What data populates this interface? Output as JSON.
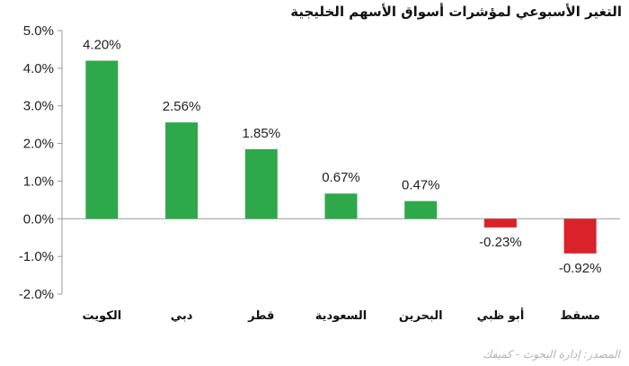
{
  "title": "التغير الأسبوعي لمؤشرات أسواق الأسهم الخليجية",
  "source": "المصدر: إدارة البحوث - كميفك",
  "chart_data": {
    "type": "bar",
    "categories": [
      "الكويت",
      "دبي",
      "قطر",
      "السعودية",
      "البحرين",
      "أبو ظبي",
      "مسقط"
    ],
    "values": [
      4.2,
      2.56,
      1.85,
      0.67,
      0.47,
      -0.23,
      -0.92
    ],
    "data_labels": [
      "4.20%",
      "2.56%",
      "1.85%",
      "0.67%",
      "0.47%",
      "-0.23%",
      "-0.92%"
    ],
    "ylim": [
      -2.0,
      5.0
    ],
    "yticks": [
      5.0,
      4.0,
      3.0,
      2.0,
      1.0,
      0.0,
      -1.0,
      -2.0
    ],
    "ytick_labels": [
      "5.0%",
      "4.0%",
      "3.0%",
      "2.0%",
      "1.0%",
      "0.0%",
      "-1.0%",
      "-2.0%"
    ],
    "grid": false,
    "colors": {
      "positive": "#2ea84a",
      "negative": "#d9222a"
    }
  }
}
